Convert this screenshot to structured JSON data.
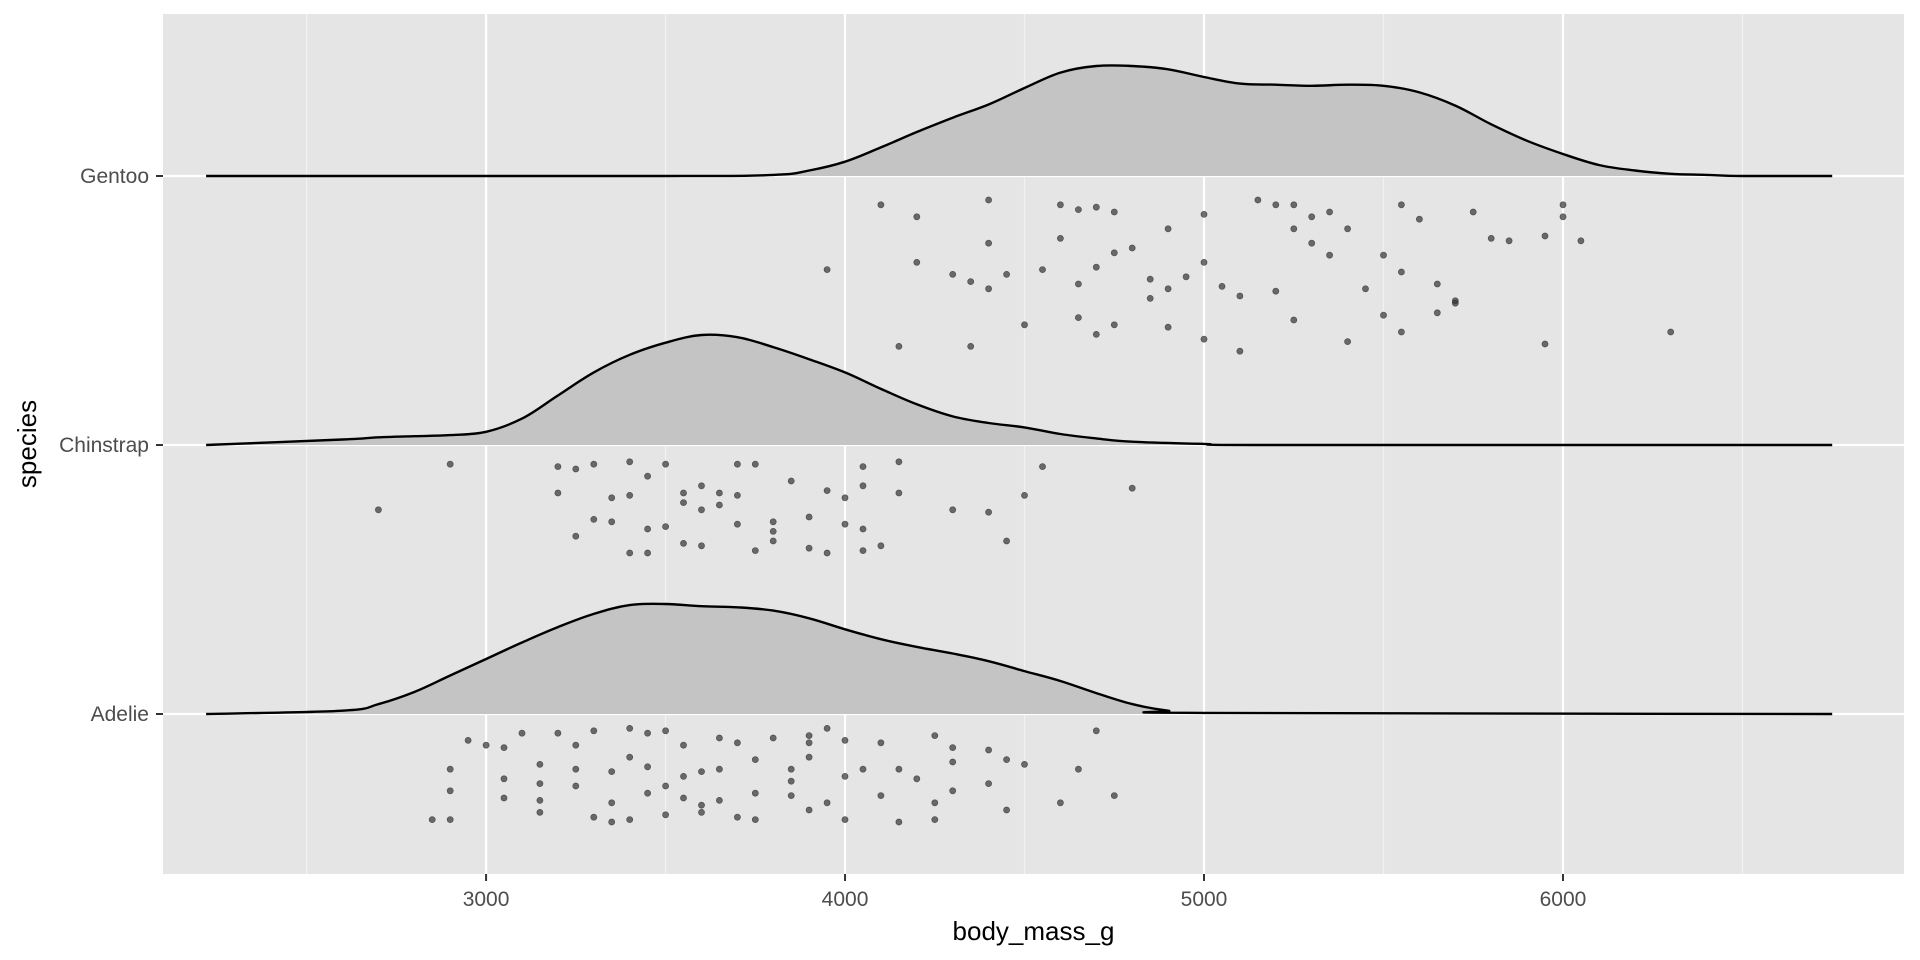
{
  "chart_data": {
    "type": "ridgeline",
    "xlabel": "body_mass_g",
    "ylabel": "species",
    "xlim": [
      2100,
      6950
    ],
    "x_ticks": [
      3000,
      4000,
      5000,
      6000
    ],
    "x_tick_labels": [
      "3000",
      "4000",
      "5000",
      "6000"
    ],
    "grid": true,
    "legend": "none",
    "colors": {
      "panel": "#e5e5e5",
      "grid_major": "#ffffff",
      "grid_minor": "#f2f2f2",
      "density_fill": "#c4c4c4",
      "density_line": "#000000",
      "point": "#333333"
    },
    "categories": [
      "Adelie",
      "Chinstrap",
      "Gentoo"
    ],
    "series": [
      {
        "name": "Gentoo",
        "density_x": [
          2220,
          3500,
          3800,
          3900,
          4000,
          4100,
          4200,
          4300,
          4400,
          4500,
          4600,
          4700,
          4800,
          4900,
          5000,
          5100,
          5200,
          5300,
          5400,
          5500,
          5600,
          5700,
          5800,
          5900,
          6000,
          6100,
          6200,
          6300,
          6400,
          6500,
          6750
        ],
        "density_rel": [
          0.0,
          0.0,
          0.01,
          0.05,
          0.13,
          0.26,
          0.4,
          0.53,
          0.65,
          0.8,
          0.94,
          1.0,
          1.0,
          0.97,
          0.9,
          0.84,
          0.83,
          0.82,
          0.83,
          0.82,
          0.76,
          0.64,
          0.47,
          0.32,
          0.2,
          0.1,
          0.05,
          0.02,
          0.01,
          0.0,
          0.0
        ],
        "points": [
          [
            4100,
            0.12
          ],
          [
            4200,
            0.17
          ],
          [
            4400,
            0.1
          ],
          [
            4400,
            0.28
          ],
          [
            4600,
            0.12
          ],
          [
            4650,
            0.14
          ],
          [
            4700,
            0.13
          ],
          [
            4750,
            0.15
          ],
          [
            4900,
            0.22
          ],
          [
            5000,
            0.16
          ],
          [
            5150,
            0.1
          ],
          [
            5200,
            0.12
          ],
          [
            5250,
            0.12
          ],
          [
            5300,
            0.17
          ],
          [
            5350,
            0.15
          ],
          [
            5400,
            0.22
          ],
          [
            5550,
            0.12
          ],
          [
            5600,
            0.18
          ],
          [
            5750,
            0.15
          ],
          [
            5850,
            0.27
          ],
          [
            6000,
            0.12
          ],
          [
            6050,
            0.27
          ],
          [
            3950,
            0.39
          ],
          [
            4200,
            0.36
          ],
          [
            4300,
            0.41
          ],
          [
            4350,
            0.44
          ],
          [
            4400,
            0.47
          ],
          [
            4450,
            0.41
          ],
          [
            4550,
            0.39
          ],
          [
            4650,
            0.45
          ],
          [
            4700,
            0.38
          ],
          [
            4750,
            0.32
          ],
          [
            4800,
            0.3
          ],
          [
            4850,
            0.43
          ],
          [
            4900,
            0.47
          ],
          [
            4950,
            0.42
          ],
          [
            5000,
            0.36
          ],
          [
            5050,
            0.46
          ],
          [
            5100,
            0.5
          ],
          [
            5200,
            0.48
          ],
          [
            5300,
            0.28
          ],
          [
            5350,
            0.33
          ],
          [
            5450,
            0.47
          ],
          [
            5500,
            0.33
          ],
          [
            5550,
            0.4
          ],
          [
            5650,
            0.45
          ],
          [
            5700,
            0.52
          ],
          [
            5800,
            0.26
          ],
          [
            5950,
            0.25
          ],
          [
            6000,
            0.17
          ],
          [
            4150,
            0.71
          ],
          [
            4350,
            0.71
          ],
          [
            4500,
            0.62
          ],
          [
            4650,
            0.59
          ],
          [
            4700,
            0.66
          ],
          [
            4750,
            0.62
          ],
          [
            4850,
            0.51
          ],
          [
            5000,
            0.68
          ],
          [
            5100,
            0.73
          ],
          [
            5250,
            0.6
          ],
          [
            5400,
            0.69
          ],
          [
            5500,
            0.58
          ],
          [
            5550,
            0.65
          ],
          [
            5650,
            0.57
          ],
          [
            5700,
            0.53
          ],
          [
            5950,
            0.7
          ],
          [
            6300,
            0.65
          ],
          [
            4900,
            0.63
          ],
          [
            4600,
            0.26
          ],
          [
            5250,
            0.22
          ]
        ]
      },
      {
        "name": "Chinstrap",
        "density_x": [
          2220,
          2600,
          2700,
          2800,
          2900,
          3000,
          3100,
          3200,
          3300,
          3400,
          3500,
          3600,
          3700,
          3800,
          3900,
          4000,
          4100,
          4200,
          4300,
          4400,
          4500,
          4600,
          4700,
          4800,
          5000,
          5200,
          6750
        ],
        "density_rel": [
          0.0,
          0.05,
          0.07,
          0.08,
          0.09,
          0.12,
          0.24,
          0.45,
          0.66,
          0.82,
          0.93,
          1.0,
          0.98,
          0.89,
          0.78,
          0.66,
          0.51,
          0.37,
          0.26,
          0.2,
          0.16,
          0.1,
          0.06,
          0.03,
          0.01,
          0.0,
          0.0
        ],
        "points": [
          [
            2900,
            0.08
          ],
          [
            3200,
            0.09
          ],
          [
            3250,
            0.1
          ],
          [
            3300,
            0.08
          ],
          [
            3400,
            0.07
          ],
          [
            3450,
            0.13
          ],
          [
            3500,
            0.08
          ],
          [
            3700,
            0.08
          ],
          [
            3750,
            0.08
          ],
          [
            4050,
            0.09
          ],
          [
            4150,
            0.07
          ],
          [
            4550,
            0.09
          ],
          [
            3350,
            0.22
          ],
          [
            3400,
            0.21
          ],
          [
            3550,
            0.24
          ],
          [
            3600,
            0.17
          ],
          [
            3650,
            0.2
          ],
          [
            3700,
            0.21
          ],
          [
            3850,
            0.15
          ],
          [
            3950,
            0.19
          ],
          [
            4050,
            0.17
          ],
          [
            4150,
            0.2
          ],
          [
            4500,
            0.21
          ],
          [
            4800,
            0.18
          ],
          [
            2700,
            0.27
          ],
          [
            3300,
            0.31
          ],
          [
            3350,
            0.32
          ],
          [
            3450,
            0.35
          ],
          [
            3500,
            0.34
          ],
          [
            3600,
            0.27
          ],
          [
            3700,
            0.33
          ],
          [
            3800,
            0.32
          ],
          [
            3900,
            0.3
          ],
          [
            4000,
            0.33
          ],
          [
            4050,
            0.35
          ],
          [
            4300,
            0.27
          ],
          [
            4400,
            0.28
          ],
          [
            3250,
            0.38
          ],
          [
            3400,
            0.45
          ],
          [
            3450,
            0.45
          ],
          [
            3550,
            0.41
          ],
          [
            3600,
            0.42
          ],
          [
            3750,
            0.44
          ],
          [
            3800,
            0.4
          ],
          [
            3900,
            0.43
          ],
          [
            4050,
            0.44
          ],
          [
            4450,
            0.4
          ],
          [
            3200,
            0.2
          ],
          [
            3650,
            0.25
          ],
          [
            4000,
            0.22
          ],
          [
            3950,
            0.45
          ],
          [
            4100,
            0.42
          ],
          [
            3800,
            0.36
          ],
          [
            3550,
            0.2
          ]
        ]
      },
      {
        "name": "Adelie",
        "density_x": [
          2220,
          2600,
          2700,
          2800,
          2900,
          3000,
          3100,
          3200,
          3300,
          3400,
          3500,
          3600,
          3700,
          3800,
          3900,
          4000,
          4100,
          4200,
          4300,
          4400,
          4500,
          4600,
          4700,
          4800,
          4900,
          5000,
          6750
        ],
        "density_rel": [
          0.0,
          0.03,
          0.09,
          0.2,
          0.35,
          0.5,
          0.65,
          0.79,
          0.91,
          0.99,
          1.0,
          0.98,
          0.97,
          0.94,
          0.87,
          0.77,
          0.68,
          0.61,
          0.55,
          0.48,
          0.39,
          0.3,
          0.19,
          0.09,
          0.03,
          0.01,
          0.0
        ],
        "points": [
          [
            2950,
            0.11
          ],
          [
            3000,
            0.13
          ],
          [
            3050,
            0.14
          ],
          [
            3100,
            0.08
          ],
          [
            3200,
            0.08
          ],
          [
            3250,
            0.13
          ],
          [
            3300,
            0.07
          ],
          [
            3400,
            0.06
          ],
          [
            3450,
            0.08
          ],
          [
            3500,
            0.07
          ],
          [
            3550,
            0.13
          ],
          [
            3650,
            0.1
          ],
          [
            3700,
            0.12
          ],
          [
            3800,
            0.1
          ],
          [
            3900,
            0.12
          ],
          [
            3950,
            0.06
          ],
          [
            4000,
            0.11
          ],
          [
            4100,
            0.12
          ],
          [
            4250,
            0.09
          ],
          [
            4300,
            0.14
          ],
          [
            4400,
            0.15
          ],
          [
            4450,
            0.19
          ],
          [
            4700,
            0.07
          ],
          [
            2900,
            0.23
          ],
          [
            3050,
            0.27
          ],
          [
            3150,
            0.21
          ],
          [
            3250,
            0.23
          ],
          [
            3350,
            0.24
          ],
          [
            3400,
            0.18
          ],
          [
            3450,
            0.22
          ],
          [
            3550,
            0.26
          ],
          [
            3600,
            0.24
          ],
          [
            3650,
            0.23
          ],
          [
            3750,
            0.19
          ],
          [
            3850,
            0.23
          ],
          [
            3900,
            0.18
          ],
          [
            4000,
            0.26
          ],
          [
            4050,
            0.23
          ],
          [
            4150,
            0.23
          ],
          [
            4300,
            0.2
          ],
          [
            4500,
            0.21
          ],
          [
            4650,
            0.23
          ],
          [
            2900,
            0.32
          ],
          [
            3050,
            0.35
          ],
          [
            3150,
            0.36
          ],
          [
            3250,
            0.3
          ],
          [
            3350,
            0.37
          ],
          [
            3450,
            0.33
          ],
          [
            3550,
            0.35
          ],
          [
            3650,
            0.36
          ],
          [
            3750,
            0.33
          ],
          [
            3850,
            0.34
          ],
          [
            3950,
            0.37
          ],
          [
            4100,
            0.34
          ],
          [
            4250,
            0.37
          ],
          [
            4300,
            0.32
          ],
          [
            4600,
            0.37
          ],
          [
            4750,
            0.34
          ],
          [
            2850,
            0.44
          ],
          [
            2900,
            0.44
          ],
          [
            3150,
            0.41
          ],
          [
            3300,
            0.43
          ],
          [
            3400,
            0.44
          ],
          [
            3500,
            0.42
          ],
          [
            3600,
            0.41
          ],
          [
            3700,
            0.43
          ],
          [
            3900,
            0.4
          ],
          [
            4000,
            0.44
          ],
          [
            4150,
            0.45
          ],
          [
            4250,
            0.44
          ],
          [
            4450,
            0.4
          ],
          [
            3350,
            0.45
          ],
          [
            3750,
            0.44
          ],
          [
            3600,
            0.38
          ],
          [
            3150,
            0.29
          ],
          [
            3850,
            0.28
          ],
          [
            4200,
            0.27
          ],
          [
            3500,
            0.3
          ],
          [
            3900,
            0.09
          ],
          [
            4400,
            0.29
          ]
        ]
      }
    ]
  }
}
